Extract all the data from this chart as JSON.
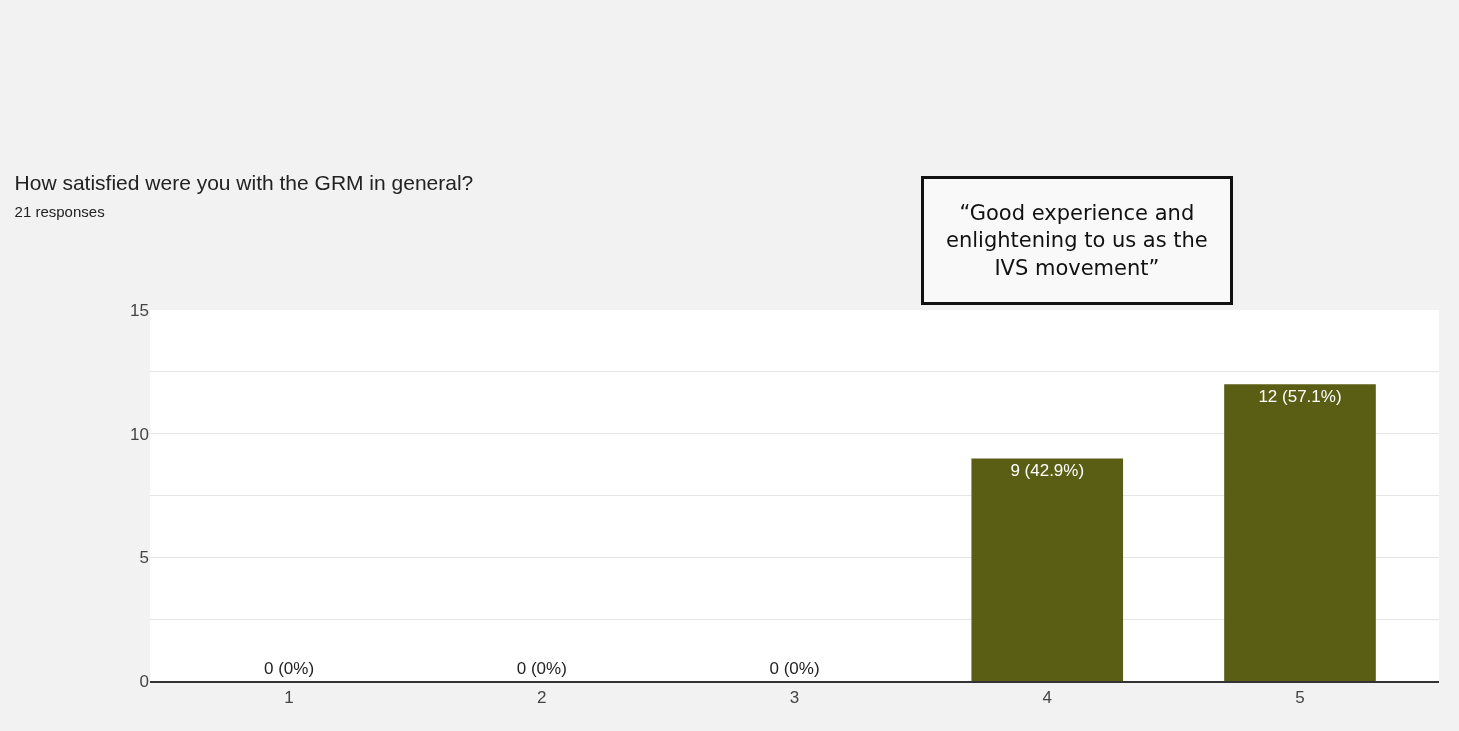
{
  "chart_data": {
    "type": "bar",
    "title": "How satisfied were you with the GRM in general?",
    "subtitle": "21 responses",
    "categories": [
      "1",
      "2",
      "3",
      "4",
      "5"
    ],
    "values": [
      0,
      0,
      0,
      9,
      12
    ],
    "value_labels": [
      "0 (0%)",
      "0 (0%)",
      "0 (0%)",
      "9 (42.9%)",
      "12 (57.1%)"
    ],
    "color": "#5a5e14",
    "ylim": [
      0,
      15
    ],
    "yticks": [
      0,
      {
        "value": 2.5,
        "label": null
      },
      5,
      {
        "value": 7.5,
        "label": null
      },
      10,
      {
        "value": 12.5,
        "label": null
      },
      15
    ],
    "grid": "y",
    "annotations": [
      "“Good experience and enlightening to us as the IVS movement”"
    ]
  }
}
